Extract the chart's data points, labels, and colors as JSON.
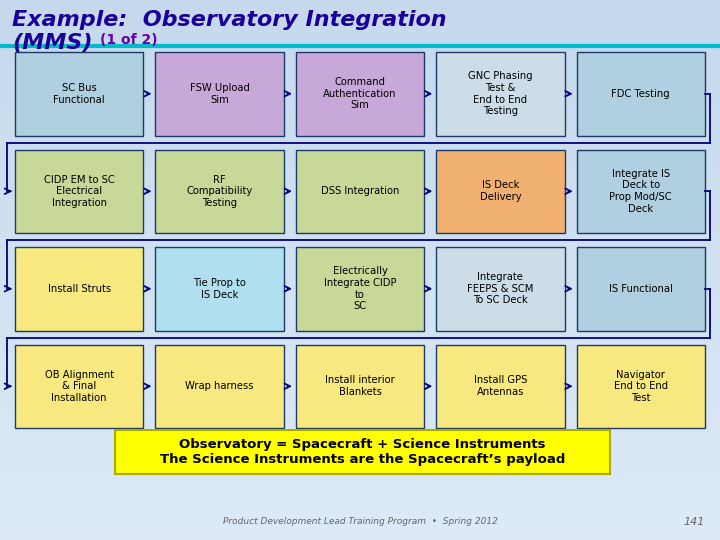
{
  "title_line1": "Example:  Observatory Integration",
  "title_line2": "(MMS)",
  "subtitle": "(1 of 2)",
  "bg_top": "#c5d8ec",
  "bg_bottom": "#ddeaf6",
  "title_color": "#1a0099",
  "subtitle_color": "#6600aa",
  "teal_line_color": "#00bbcc",
  "rows": [
    {
      "boxes": [
        {
          "text": "SC Bus\nFunctional",
          "color": "#b0cfe0"
        },
        {
          "text": "FSW Upload\nSim",
          "color": "#c8a8d8"
        },
        {
          "text": "Command\nAuthentication\nSim",
          "color": "#c8a8d8"
        },
        {
          "text": "GNC Phasing\nTest &\nEnd to End\nTesting",
          "color": "#ccdde8"
        },
        {
          "text": "FDC Testing",
          "color": "#b0cfe0"
        }
      ]
    },
    {
      "boxes": [
        {
          "text": "CIDP EM to SC\nElectrical\nIntegration",
          "color": "#c8d898"
        },
        {
          "text": "RF\nCompatibility\nTesting",
          "color": "#c8d898"
        },
        {
          "text": "DSS Integration",
          "color": "#c8d898"
        },
        {
          "text": "IS Deck\nDelivery",
          "color": "#f0b070"
        },
        {
          "text": "Integrate IS\nDeck to\nProp Mod/SC\nDeck",
          "color": "#b0cfe0"
        }
      ]
    },
    {
      "boxes": [
        {
          "text": "Install Struts",
          "color": "#f8e880"
        },
        {
          "text": "Tie Prop to\nIS Deck",
          "color": "#b0e0f0"
        },
        {
          "text": "Electrically\nIntegrate CIDP\nto\nSC",
          "color": "#c8d898"
        },
        {
          "text": "Integrate\nFEEPS & SCM\nTo SC Deck",
          "color": "#ccdde8"
        },
        {
          "text": "IS Functional",
          "color": "#b0cfe0"
        }
      ]
    },
    {
      "boxes": [
        {
          "text": "OB Alignment\n& Final\nInstallation",
          "color": "#f8e880"
        },
        {
          "text": "Wrap harness",
          "color": "#f8e880"
        },
        {
          "text": "Install interior\nBlankets",
          "color": "#f8e880"
        },
        {
          "text": "Install GPS\nAntennas",
          "color": "#f8e880"
        },
        {
          "text": "Navigator\nEnd to End\nTest",
          "color": "#f8e880"
        }
      ]
    }
  ],
  "footer_text": "Product Development Lead Training Program  •  Spring 2012",
  "footer_page": "141",
  "note_bg": "#ffff00",
  "note_text": "Observatory = Spacecraft + Science Instruments\nThe Science Instruments are the Spacecraft’s payload",
  "note_color": "#000000",
  "arrow_color": "#000080",
  "box_border_color": "#1a3a6a"
}
